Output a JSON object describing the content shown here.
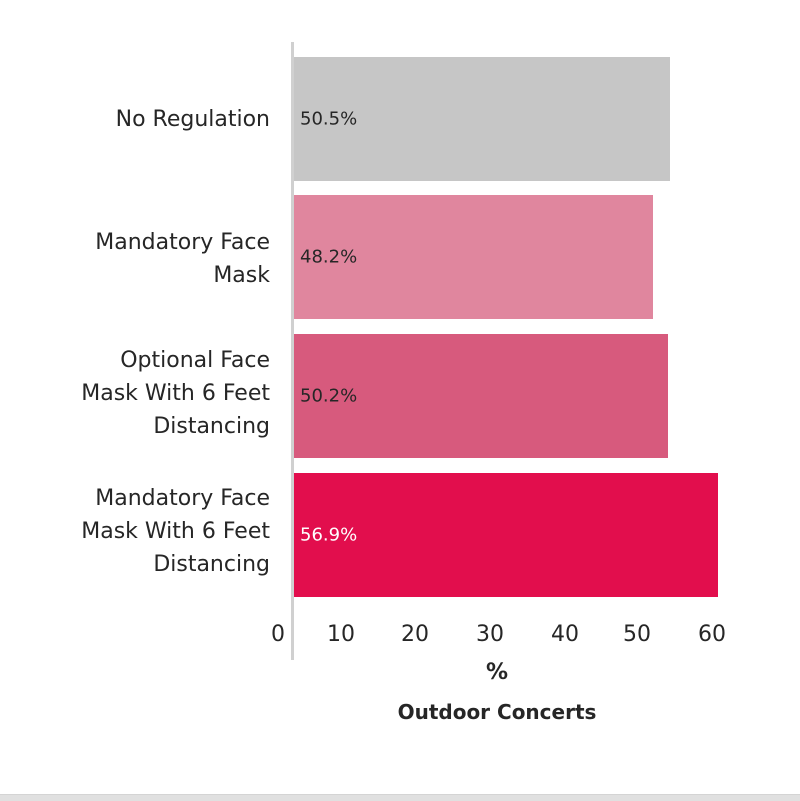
{
  "chart_data": {
    "type": "bar",
    "orientation": "horizontal",
    "title": "",
    "subtitle": "Outdoor Concerts",
    "xlabel": "%",
    "ylabel": "",
    "xlim": [
      0,
      60
    ],
    "grid": false,
    "legend": null,
    "categories": [
      "No Regulation",
      "Mandatory Face Mask",
      "Optional Face Mask With 6 Feet Distancing",
      "Mandatory Face Mask With 6 Feet Distancing"
    ],
    "values": [
      50.5,
      48.2,
      50.2,
      56.9
    ],
    "data_labels": [
      "50.5%",
      "48.2%",
      "50.2%",
      "56.9%"
    ],
    "colors": [
      "#c6c6c6",
      "#e0869e",
      "#d75a7d",
      "#e20e4d"
    ],
    "label_colors": [
      "#262626",
      "#262626",
      "#262626",
      "#ffffff"
    ],
    "x_ticks": [
      "0",
      "10",
      "20",
      "30",
      "40",
      "50",
      "60"
    ]
  },
  "labels": {
    "cat0_lines": [
      "No Regulation"
    ],
    "cat1_lines": [
      "Mandatory Face",
      "Mask"
    ],
    "cat2_lines": [
      "Optional Face",
      "Mask With 6 Feet",
      "Distancing"
    ],
    "cat3_lines": [
      "Mandatory Face",
      "Mask With 6 Feet",
      "Distancing"
    ]
  }
}
